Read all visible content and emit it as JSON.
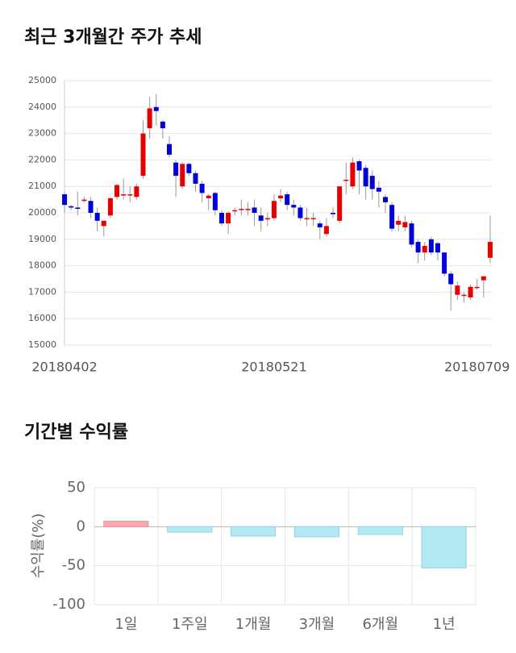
{
  "chart_data": [
    {
      "type": "candlestick",
      "title": "최근 3개월간 주가 추세",
      "categories": [
        "20180402",
        null,
        null,
        null,
        null,
        null,
        null,
        null,
        null,
        null,
        null,
        null,
        null,
        null,
        null,
        null,
        null,
        null,
        null,
        null,
        null,
        null,
        null,
        null,
        null,
        null,
        null,
        null,
        null,
        null,
        null,
        null,
        "20180521",
        null,
        null,
        null,
        null,
        null,
        null,
        null,
        null,
        null,
        null,
        null,
        null,
        null,
        null,
        null,
        null,
        null,
        null,
        null,
        null,
        null,
        null,
        null,
        null,
        null,
        null,
        null,
        null,
        null,
        null,
        "20180709",
        null,
        null
      ],
      "open": [
        20700,
        20250,
        20200,
        20450,
        20450,
        20000,
        19500,
        19900,
        20600,
        20700,
        20700,
        20600,
        21400,
        23200,
        24000,
        23450,
        22600,
        21900,
        21000,
        21850,
        21500,
        21100,
        20550,
        20750,
        20000,
        19600,
        20100,
        20150,
        20150,
        20200,
        19900,
        19750,
        19800,
        20550,
        20700,
        20300,
        20200,
        19800,
        19800,
        19600,
        19200,
        20000,
        19700,
        21250,
        21000,
        21950,
        21700,
        21400,
        20950,
        20600,
        20300,
        19550,
        19450,
        19600,
        18900,
        18500,
        19000,
        18850,
        18500,
        17700,
        16900,
        16900,
        16800,
        17200,
        17450,
        18300
      ],
      "high": [
        20800,
        20300,
        20800,
        20600,
        20600,
        20200,
        19700,
        20600,
        21100,
        21300,
        21000,
        21100,
        23500,
        24400,
        24500,
        23500,
        22900,
        22000,
        21900,
        21900,
        21600,
        21200,
        20700,
        20800,
        20100,
        20050,
        20200,
        20500,
        20400,
        20500,
        20200,
        20000,
        20700,
        20900,
        20800,
        20500,
        20300,
        20200,
        20000,
        19700,
        19800,
        20200,
        21000,
        21900,
        22100,
        22000,
        21800,
        21600,
        21200,
        20700,
        20400,
        19900,
        19900,
        19700,
        19000,
        18900,
        19100,
        18900,
        18500,
        17800,
        17400,
        17000,
        17300,
        17500,
        17600,
        19900
      ],
      "low": [
        20000,
        20100,
        19900,
        20400,
        19800,
        19300,
        19100,
        19800,
        20500,
        20500,
        20400,
        20500,
        21300,
        22800,
        23300,
        22800,
        22100,
        20600,
        20900,
        21400,
        20800,
        20400,
        20100,
        19900,
        19500,
        19200,
        19900,
        19900,
        19900,
        19500,
        19300,
        19500,
        19700,
        20400,
        20100,
        19900,
        19700,
        19500,
        19500,
        19000,
        19100,
        19800,
        19600,
        20700,
        20900,
        20700,
        20500,
        20500,
        20200,
        20000,
        19300,
        19300,
        19300,
        18700,
        18100,
        18200,
        18400,
        18200,
        17600,
        16300,
        16700,
        16600,
        16700,
        17100,
        16800,
        18100
      ],
      "close": [
        20300,
        20200,
        20150,
        20500,
        20000,
        19700,
        19700,
        20550,
        21050,
        20700,
        20700,
        21000,
        23000,
        23950,
        23850,
        23200,
        22200,
        21400,
        21850,
        21500,
        21100,
        20750,
        20650,
        20100,
        19600,
        20000,
        20100,
        20150,
        20150,
        20000,
        19700,
        19800,
        20450,
        20650,
        20300,
        20200,
        19800,
        19800,
        19800,
        19450,
        19500,
        19950,
        21000,
        21250,
        21900,
        21600,
        21000,
        20900,
        20800,
        20400,
        19400,
        19700,
        19650,
        18800,
        18500,
        18750,
        18500,
        18500,
        17700,
        17300,
        17250,
        16900,
        17200,
        17200,
        17600,
        18900
      ],
      "up_color": "#e60000",
      "down_color": "#0000dd",
      "ylim": [
        15000,
        25000
      ],
      "yticks": [
        15000,
        16000,
        17000,
        18000,
        19000,
        20000,
        21000,
        22000,
        23000,
        24000,
        25000
      ],
      "grid": true
    },
    {
      "type": "bar",
      "title": "기간별 수익률",
      "y_label": "수익률(%)",
      "categories": [
        "1일",
        "1주일",
        "1개월",
        "3개월",
        "6개월",
        "1년"
      ],
      "values": [
        7,
        -7,
        -12,
        -13,
        -10,
        -53
      ],
      "positive_color": "#f7a9ae",
      "negative_color": "#b4e9f4",
      "ylim": [
        -100,
        50
      ],
      "yticks": [
        -100,
        -50,
        0,
        50
      ],
      "grid": true
    }
  ]
}
